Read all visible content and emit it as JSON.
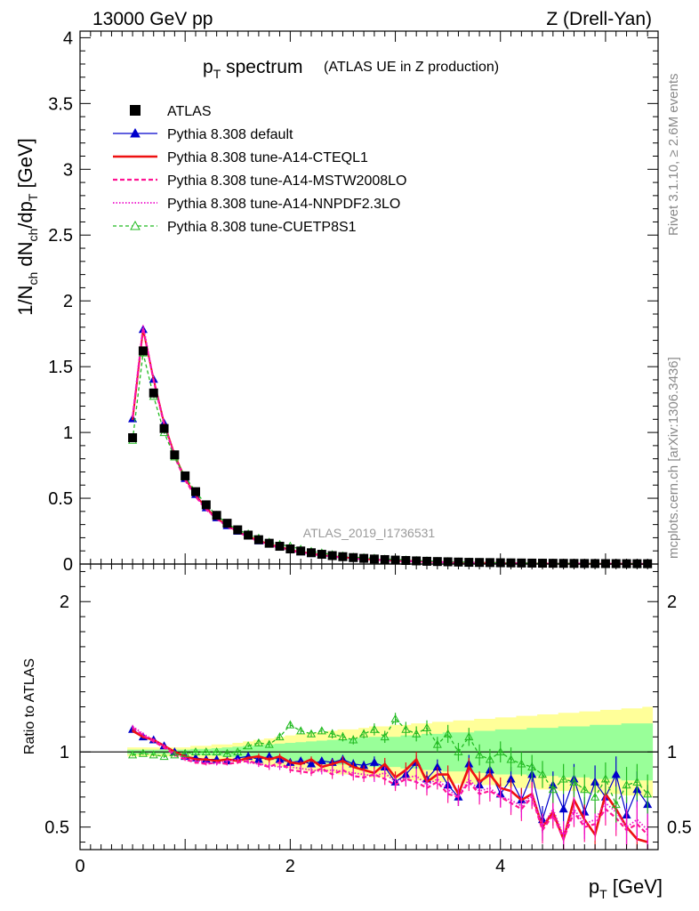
{
  "header": {
    "left": "13000 GeV pp",
    "right": "Z (Drell-Yan)"
  },
  "side_labels": {
    "rivet": "Rivet 3.1.10, ≥ 2.6M events",
    "mcplots": "mcplots.cern.ch [arXiv:1306.3436]"
  },
  "chart_data": {
    "type": "line",
    "title": "p",
    "title_sub": "T",
    "title_rest": " spectrum",
    "title_note": "(ATLAS UE in Z production)",
    "analysis_id": "ATLAS_2019_I1736531",
    "ylabel_main": "1/N_ch dN_ch/dp_T [GeV]",
    "ylabel_ratio": "Ratio to ATLAS",
    "xlabel": "p_T [GeV]",
    "xlim": [
      0,
      5.5
    ],
    "ylim_main": [
      0,
      4.05
    ],
    "ylim_ratio": [
      0.35,
      2.25
    ],
    "x_ticks": [
      "0",
      "2",
      "4"
    ],
    "y_ticks_main": [
      "0",
      "0.5",
      "1",
      "1.5",
      "2",
      "2.5",
      "3",
      "3.5",
      "4"
    ],
    "y_ticks_ratio": [
      "0.5",
      "1",
      "2"
    ],
    "legend": [
      {
        "label": "ATLAS",
        "color": "#000000",
        "style": "square"
      },
      {
        "label": "Pythia 8.308 default",
        "color": "#0000cc",
        "style": "line-triangle"
      },
      {
        "label": "Pythia 8.308 tune-A14-CTEQL1",
        "color": "#ee1111",
        "style": "thick-line"
      },
      {
        "label": "Pythia 8.308 tune-A14-MSTW2008LO",
        "color": "#ff1493",
        "style": "dashed"
      },
      {
        "label": "Pythia 8.308 tune-A14-NNPDF2.3LO",
        "color": "#ee11cc",
        "style": "dotted"
      },
      {
        "label": "Pythia 8.308 tune-CUETP8S1",
        "color": "#22bb22",
        "style": "dashed-open-triangle"
      }
    ],
    "x": [
      0.5,
      0.6,
      0.7,
      0.8,
      0.9,
      1.0,
      1.1,
      1.2,
      1.3,
      1.4,
      1.5,
      1.6,
      1.7,
      1.8,
      1.9,
      2.0,
      2.1,
      2.2,
      2.3,
      2.4,
      2.5,
      2.6,
      2.7,
      2.8,
      2.9,
      3.0,
      3.1,
      3.2,
      3.3,
      3.4,
      3.5,
      3.6,
      3.7,
      3.8,
      3.9,
      4.0,
      4.1,
      4.2,
      4.3,
      4.4,
      4.5,
      4.6,
      4.7,
      4.8,
      4.9,
      5.0,
      5.1,
      5.2,
      5.3,
      5.4
    ],
    "atlas": [
      0.96,
      1.62,
      1.3,
      1.03,
      0.83,
      0.67,
      0.55,
      0.45,
      0.37,
      0.31,
      0.26,
      0.22,
      0.185,
      0.158,
      0.135,
      0.115,
      0.099,
      0.086,
      0.074,
      0.064,
      0.056,
      0.049,
      0.043,
      0.038,
      0.034,
      0.03,
      0.027,
      0.024,
      0.021,
      0.019,
      0.017,
      0.015,
      0.013,
      0.012,
      0.011,
      0.0098,
      0.0088,
      0.0079,
      0.0071,
      0.0064,
      0.0058,
      0.0052,
      0.0047,
      0.0043,
      0.0039,
      0.0035,
      0.0032,
      0.0029,
      0.0026,
      0.0024
    ],
    "band_yellow_half": [
      0.03,
      0.03,
      0.03,
      0.03,
      0.03,
      0.03,
      0.04,
      0.04,
      0.05,
      0.05,
      0.06,
      0.07,
      0.08,
      0.09,
      0.1,
      0.11,
      0.12,
      0.13,
      0.13,
      0.14,
      0.15,
      0.15,
      0.16,
      0.17,
      0.17,
      0.18,
      0.18,
      0.19,
      0.19,
      0.2,
      0.2,
      0.21,
      0.21,
      0.22,
      0.22,
      0.23,
      0.23,
      0.24,
      0.24,
      0.25,
      0.25,
      0.26,
      0.26,
      0.27,
      0.27,
      0.28,
      0.28,
      0.29,
      0.29,
      0.3
    ],
    "band_green_half": [
      0.015,
      0.015,
      0.015,
      0.015,
      0.015,
      0.015,
      0.02,
      0.02,
      0.025,
      0.03,
      0.035,
      0.04,
      0.045,
      0.05,
      0.055,
      0.06,
      0.065,
      0.07,
      0.075,
      0.08,
      0.085,
      0.09,
      0.095,
      0.1,
      0.1,
      0.1,
      0.11,
      0.11,
      0.12,
      0.12,
      0.13,
      0.13,
      0.13,
      0.14,
      0.14,
      0.15,
      0.15,
      0.15,
      0.16,
      0.16,
      0.16,
      0.17,
      0.17,
      0.17,
      0.18,
      0.18,
      0.18,
      0.19,
      0.19,
      0.19
    ],
    "series": [
      {
        "name": "Pythia 8.308 default",
        "color": "#0000cc",
        "ratio": [
          1.15,
          1.1,
          1.08,
          1.04,
          1.0,
          0.97,
          0.96,
          0.95,
          0.95,
          0.94,
          0.96,
          0.97,
          0.95,
          0.97,
          0.95,
          0.93,
          0.94,
          0.92,
          0.94,
          0.93,
          0.95,
          0.92,
          0.91,
          0.93,
          0.9,
          0.8,
          0.85,
          0.93,
          0.82,
          0.9,
          0.78,
          0.7,
          0.92,
          0.78,
          0.88,
          0.72,
          0.82,
          0.68,
          0.85,
          0.55,
          0.78,
          0.62,
          0.82,
          0.6,
          0.8,
          0.7,
          0.85,
          0.58,
          0.75,
          0.65
        ],
        "ratio_err": [
          0.01,
          0.01,
          0.01,
          0.01,
          0.01,
          0.01,
          0.01,
          0.01,
          0.01,
          0.01,
          0.01,
          0.01,
          0.02,
          0.02,
          0.02,
          0.02,
          0.02,
          0.02,
          0.02,
          0.03,
          0.03,
          0.03,
          0.03,
          0.04,
          0.04,
          0.04,
          0.05,
          0.05,
          0.05,
          0.05,
          0.06,
          0.06,
          0.06,
          0.07,
          0.07,
          0.07,
          0.08,
          0.08,
          0.08,
          0.09,
          0.09,
          0.1,
          0.1,
          0.1,
          0.11,
          0.11,
          0.12,
          0.12,
          0.12,
          0.13
        ]
      },
      {
        "name": "Pythia 8.308 tune-A14-CTEQL1",
        "color": "#ee1111",
        "ratio": [
          1.14,
          1.1,
          1.08,
          1.04,
          1.0,
          0.97,
          0.95,
          0.95,
          0.94,
          0.95,
          0.94,
          0.96,
          0.97,
          0.95,
          0.97,
          0.93,
          0.92,
          0.95,
          0.9,
          0.92,
          0.94,
          0.9,
          0.88,
          0.86,
          0.92,
          0.83,
          0.88,
          0.95,
          0.8,
          0.85,
          0.85,
          0.72,
          0.9,
          0.8,
          0.85,
          0.76,
          0.74,
          0.68,
          0.72,
          0.5,
          0.6,
          0.42,
          0.68,
          0.55,
          0.45,
          0.72,
          0.62,
          0.5,
          0.42,
          0.4
        ],
        "ratio_err": [
          0.01,
          0.01,
          0.01,
          0.01,
          0.01,
          0.01,
          0.01,
          0.01,
          0.01,
          0.01,
          0.01,
          0.01,
          0.02,
          0.02,
          0.02,
          0.02,
          0.02,
          0.02,
          0.02,
          0.03,
          0.03,
          0.03,
          0.03,
          0.04,
          0.04,
          0.04,
          0.05,
          0.05,
          0.05,
          0.05,
          0.06,
          0.06,
          0.06,
          0.07,
          0.07,
          0.07,
          0.08,
          0.08,
          0.08,
          0.09,
          0.09,
          0.1,
          0.1,
          0.1,
          0.11,
          0.11,
          0.12,
          0.12,
          0.12,
          0.13
        ]
      },
      {
        "name": "Pythia 8.308 tune-A14-MSTW2008LO",
        "color": "#ff1493",
        "ratio": [
          1.16,
          1.11,
          1.07,
          1.03,
          0.98,
          0.95,
          0.93,
          0.92,
          0.93,
          0.92,
          0.93,
          0.94,
          0.92,
          0.9,
          0.93,
          0.88,
          0.87,
          0.86,
          0.89,
          0.85,
          0.88,
          0.84,
          0.83,
          0.85,
          0.82,
          0.78,
          0.82,
          0.8,
          0.76,
          0.8,
          0.72,
          0.7,
          0.8,
          0.72,
          0.74,
          0.7,
          0.66,
          0.62,
          0.7,
          0.48,
          0.58,
          0.42,
          0.6,
          0.5,
          0.52,
          0.62,
          0.56,
          0.48,
          0.52,
          0.45
        ],
        "ratio_err": [
          0.01,
          0.01,
          0.01,
          0.01,
          0.01,
          0.01,
          0.01,
          0.01,
          0.01,
          0.01,
          0.01,
          0.01,
          0.02,
          0.02,
          0.02,
          0.02,
          0.02,
          0.02,
          0.02,
          0.03,
          0.03,
          0.03,
          0.03,
          0.04,
          0.04,
          0.04,
          0.05,
          0.05,
          0.05,
          0.05,
          0.06,
          0.06,
          0.06,
          0.07,
          0.07,
          0.07,
          0.08,
          0.08,
          0.08,
          0.09,
          0.09,
          0.1,
          0.1,
          0.1,
          0.11,
          0.11,
          0.12,
          0.12,
          0.12,
          0.13
        ]
      },
      {
        "name": "Pythia 8.308 tune-A14-NNPDF2.3LO",
        "color": "#ee11cc",
        "ratio": [
          1.17,
          1.12,
          1.08,
          1.04,
          0.99,
          0.96,
          0.94,
          0.93,
          0.92,
          0.94,
          0.95,
          0.93,
          0.92,
          0.91,
          0.9,
          0.9,
          0.89,
          0.88,
          0.87,
          0.88,
          0.87,
          0.86,
          0.85,
          0.84,
          0.86,
          0.8,
          0.83,
          0.84,
          0.78,
          0.82,
          0.75,
          0.7,
          0.82,
          0.74,
          0.76,
          0.7,
          0.68,
          0.64,
          0.72,
          0.5,
          0.62,
          0.44,
          0.62,
          0.52,
          0.55,
          0.66,
          0.6,
          0.5,
          0.55,
          0.48
        ],
        "ratio_err": [
          0.01,
          0.01,
          0.01,
          0.01,
          0.01,
          0.01,
          0.01,
          0.01,
          0.01,
          0.01,
          0.01,
          0.01,
          0.02,
          0.02,
          0.02,
          0.02,
          0.02,
          0.02,
          0.02,
          0.03,
          0.03,
          0.03,
          0.03,
          0.04,
          0.04,
          0.04,
          0.05,
          0.05,
          0.05,
          0.05,
          0.06,
          0.06,
          0.06,
          0.07,
          0.07,
          0.07,
          0.08,
          0.08,
          0.08,
          0.09,
          0.09,
          0.1,
          0.1,
          0.1,
          0.11,
          0.11,
          0.12,
          0.12,
          0.12,
          0.13
        ]
      },
      {
        "name": "Pythia 8.308 tune-CUETP8S1",
        "color": "#22bb22",
        "ratio": [
          0.98,
          0.99,
          0.98,
          0.97,
          0.98,
          0.99,
          1.0,
          1.0,
          1.0,
          0.99,
          1.0,
          1.04,
          1.06,
          1.05,
          1.1,
          1.18,
          1.14,
          1.12,
          1.14,
          1.12,
          1.1,
          1.08,
          1.12,
          1.15,
          1.1,
          1.22,
          1.15,
          1.12,
          1.16,
          1.05,
          1.12,
          1.0,
          1.1,
          0.98,
          0.95,
          1.0,
          0.95,
          0.92,
          0.9,
          0.85,
          0.75,
          0.82,
          0.8,
          0.75,
          0.7,
          0.82,
          0.65,
          0.78,
          0.8,
          0.72
        ],
        "ratio_err": [
          0.01,
          0.01,
          0.01,
          0.01,
          0.01,
          0.01,
          0.01,
          0.01,
          0.01,
          0.01,
          0.01,
          0.01,
          0.02,
          0.02,
          0.02,
          0.02,
          0.02,
          0.02,
          0.02,
          0.03,
          0.03,
          0.03,
          0.03,
          0.04,
          0.04,
          0.04,
          0.05,
          0.05,
          0.05,
          0.05,
          0.06,
          0.06,
          0.06,
          0.07,
          0.07,
          0.07,
          0.08,
          0.08,
          0.08,
          0.09,
          0.09,
          0.1,
          0.1,
          0.1,
          0.11,
          0.11,
          0.12,
          0.12,
          0.12,
          0.13
        ]
      }
    ]
  }
}
